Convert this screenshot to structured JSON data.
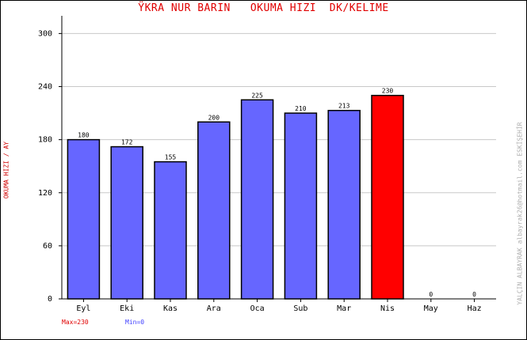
{
  "header": {
    "title": "ŸKRA NUR BARIN   OKUMA HIZI  DK/KELIME"
  },
  "side": {
    "y_axis_label": "OKUMA HIZI / AY",
    "credit": "YALÇIN ALBAYRAK   albayrak26@hotmail.com  ESKİŞEHİR"
  },
  "legend": {
    "max_label": "Max=230",
    "min_label": "Min=0"
  },
  "colors": {
    "bar": "#6666ff",
    "highlight": "#ff0000",
    "grid": "#c8c8c8",
    "axis": "#000000"
  },
  "chart_data": {
    "type": "bar",
    "title": "ŸKRA NUR BARIN   OKUMA HIZI  DK/KELIME",
    "ylabel": "OKUMA HIZI / AY",
    "xlabel": "",
    "categories": [
      "Eyl",
      "Eki",
      "Kas",
      "Ara",
      "Oca",
      "Sub",
      "Mar",
      "Nis",
      "May",
      "Haz"
    ],
    "values": [
      180,
      172,
      155,
      200,
      225,
      210,
      213,
      230,
      0,
      0
    ],
    "highlight_index": 7,
    "ylim": [
      0,
      320
    ],
    "yticks": [
      0,
      60,
      120,
      180,
      240,
      300
    ],
    "grid": true
  }
}
